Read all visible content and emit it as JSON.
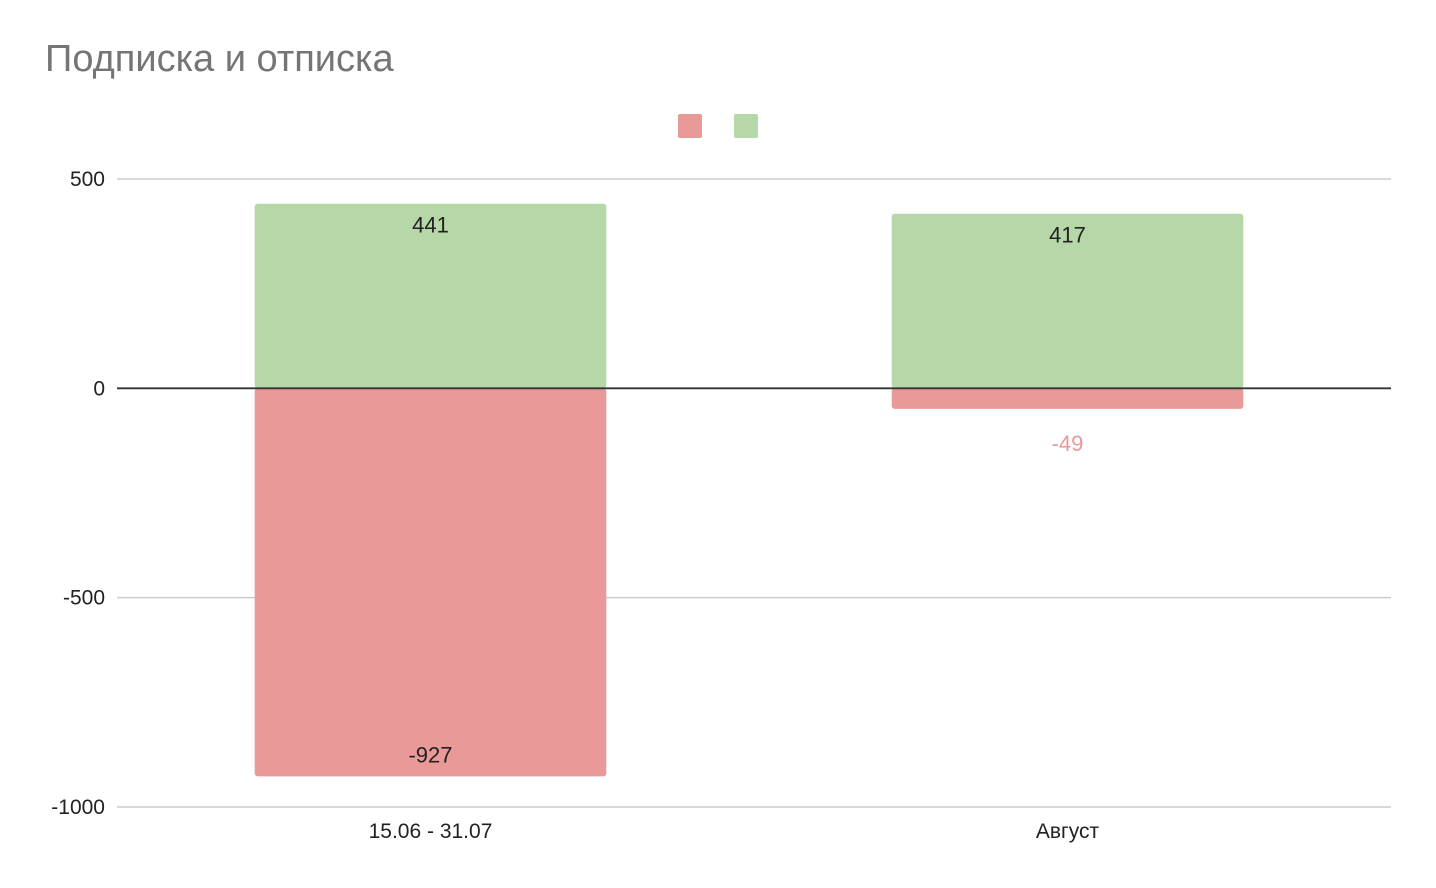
{
  "chart_data": {
    "type": "bar",
    "stacked": true,
    "title": "Подписка и отписка",
    "categories": [
      "15.06 - 31.07",
      "Август"
    ],
    "series": [
      {
        "values": [
          -927,
          -49
        ],
        "color": "#ea9999"
      },
      {
        "values": [
          441,
          417
        ],
        "color": "#b6d7a8"
      }
    ],
    "ylim": [
      -1000,
      500
    ],
    "yticks": [
      "500",
      "0",
      "-500",
      "-1000"
    ],
    "ytick_values": [
      500,
      0,
      -500,
      -1000
    ],
    "grid": true,
    "legend_position": "top"
  }
}
